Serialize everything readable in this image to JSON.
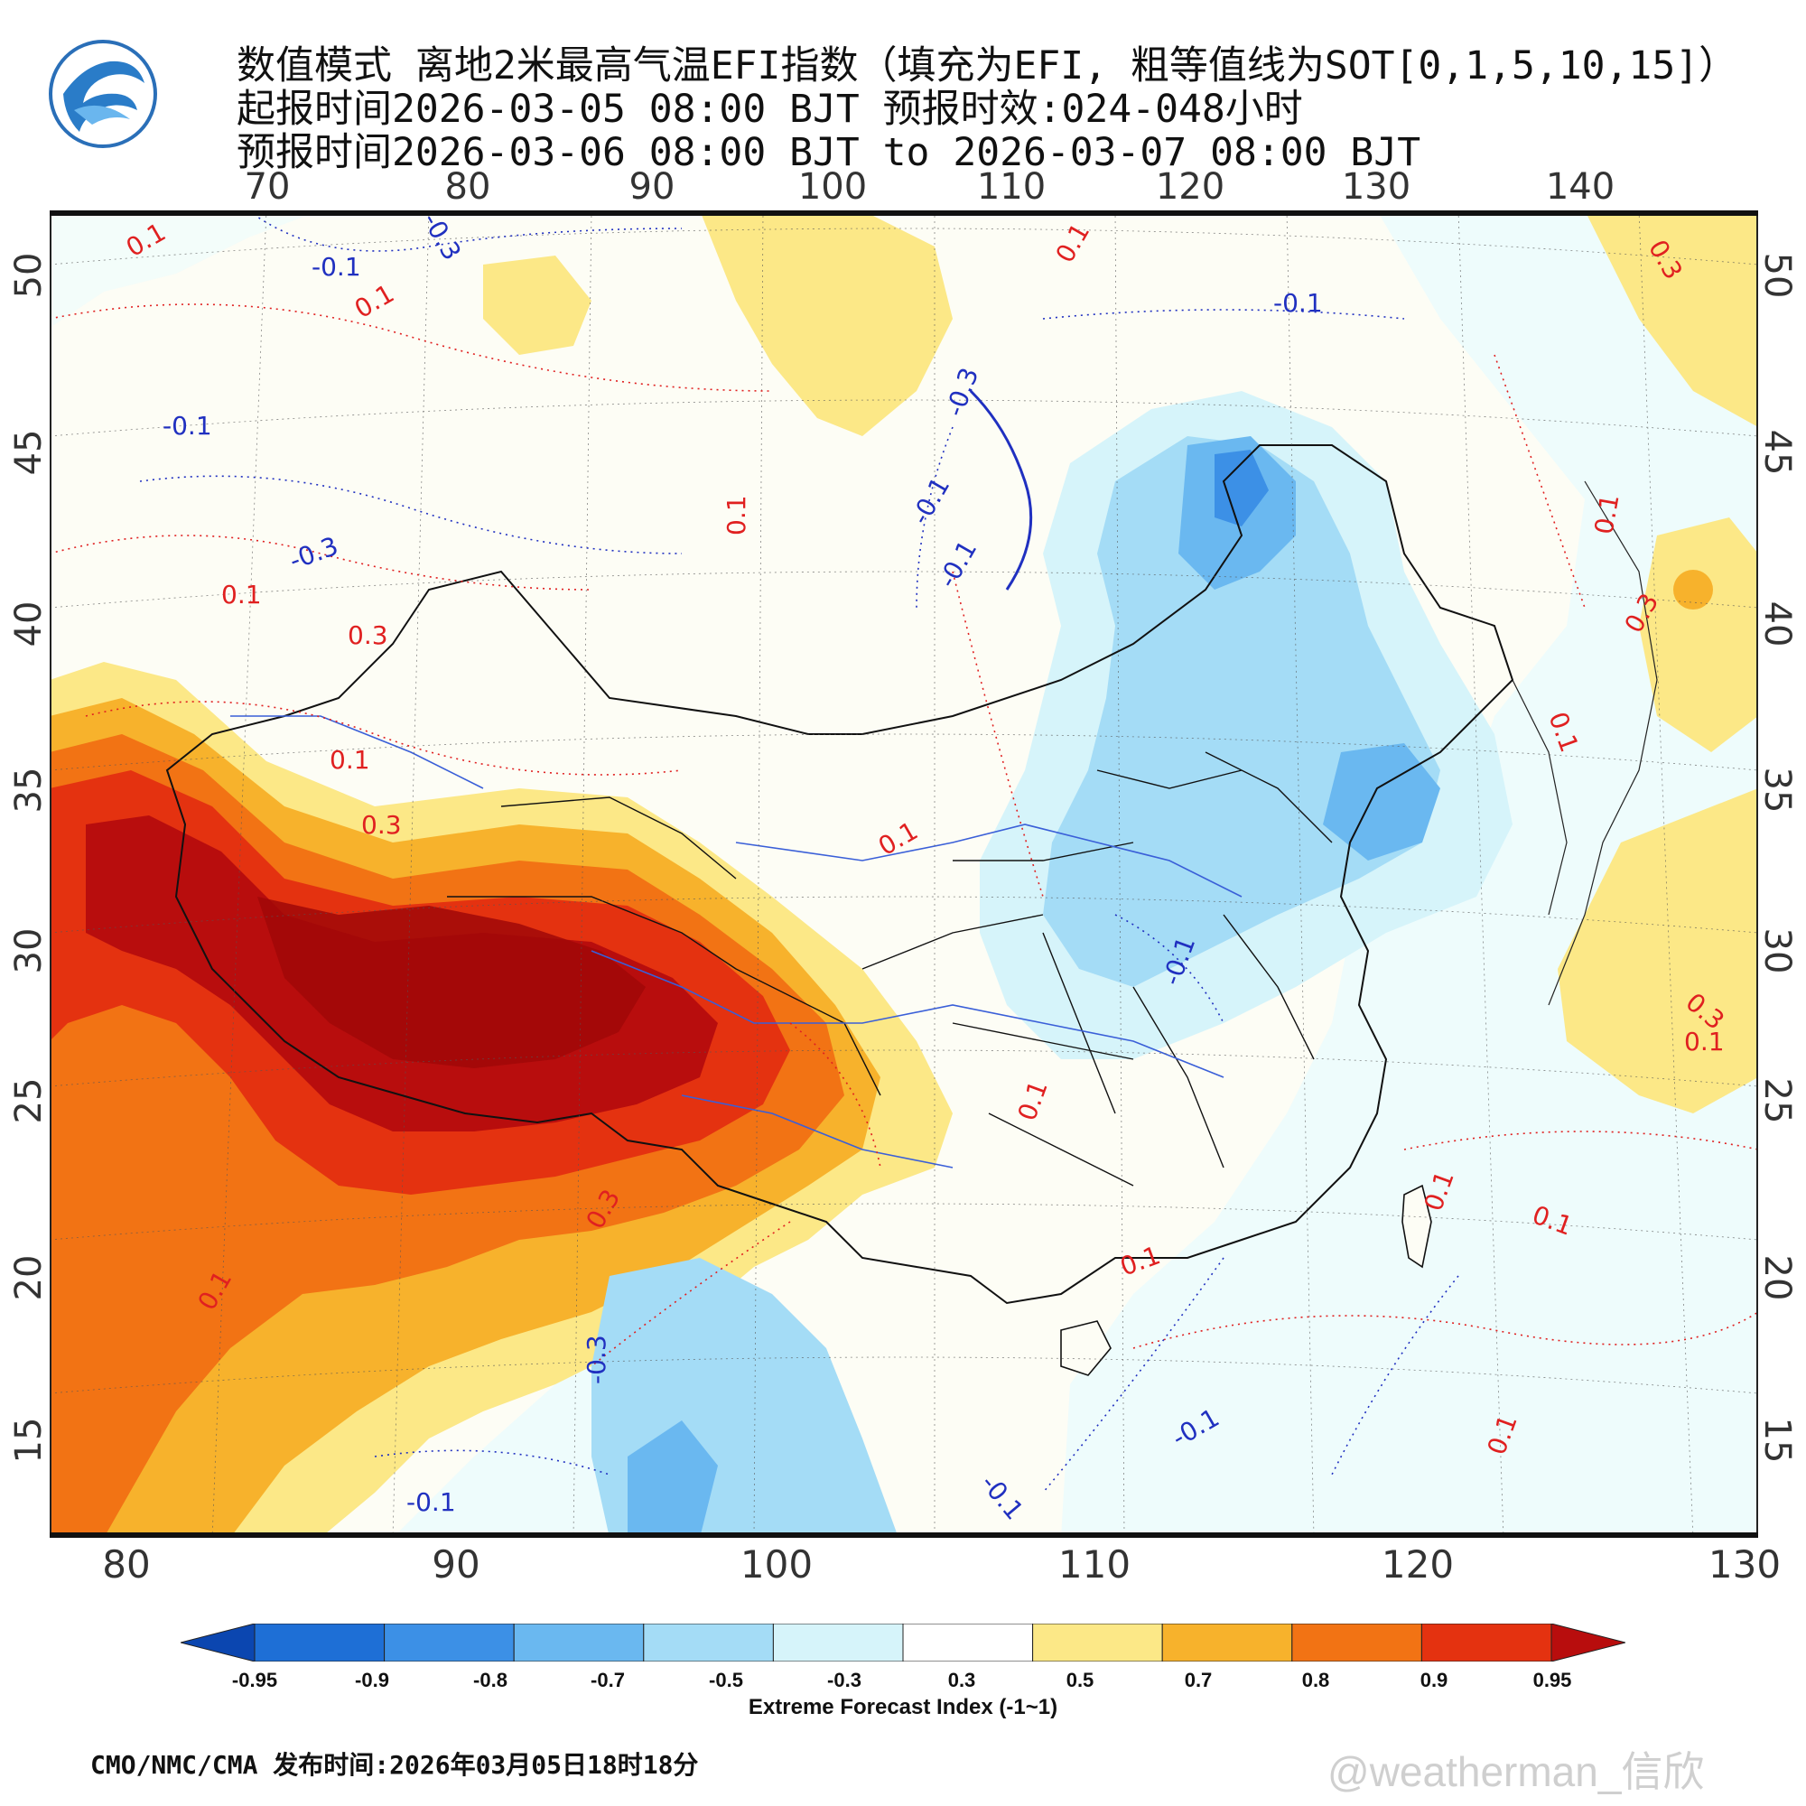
{
  "header": {
    "title_line1": "数值模式 离地2米最高气温EFI指数（填充为EFI, 粗等值线为SOT[0,1,5,10,15]）",
    "title_line2": "起报时间2026-03-05 08:00 BJT 预报时效:024-048小时",
    "title_line3": "预报时间2026-03-06 08:00 BJT to 2026-03-07 08:00 BJT"
  },
  "map": {
    "top_lon_ticks": [
      "70",
      "80",
      "90",
      "100",
      "110",
      "120",
      "130",
      "140"
    ],
    "bottom_lon_ticks": [
      "80",
      "90",
      "100",
      "110",
      "120",
      "130"
    ],
    "lat_ticks": [
      "50",
      "45",
      "40",
      "35",
      "30",
      "25",
      "20",
      "15"
    ],
    "contour_labels_red": [
      "0.1",
      "0.1",
      "0.1",
      "0.3",
      "0.1",
      "0.1",
      "0.3",
      "0.1",
      "0.1",
      "0.3",
      "0.1",
      "0.3",
      "0.1",
      "0.1",
      "0.3",
      "0.1",
      "0.3",
      "0.1",
      "0.1",
      "0.1",
      "0.1",
      "0.1"
    ],
    "contour_labels_blue": [
      "-0.3",
      "-0.1",
      "-0.1",
      "-0.3",
      "-0.1",
      "-0.1",
      "-0.1",
      "-0.3",
      "-0.1",
      "-0.3",
      "-0.1",
      "-0.1",
      "-0.1"
    ],
    "colors": {
      "ocean": "#eefcfc",
      "land": "#fdfdf5",
      "boundary": "#111111",
      "river": "#3a5fd8",
      "contour_pos": "#e02020",
      "contour_neg": "#2030c0"
    }
  },
  "colorbar": {
    "labels": [
      "-0.95",
      "-0.9",
      "-0.8",
      "-0.7",
      "-0.5",
      "-0.3",
      "0.3",
      "0.5",
      "0.7",
      "0.8",
      "0.9",
      "0.95"
    ],
    "colors": [
      "#0b46b0",
      "#1e6fd6",
      "#3c90e6",
      "#6ab8f0",
      "#a4dcf6",
      "#d6f4fa",
      "#ffffff",
      "#fce887",
      "#f7b22c",
      "#f27314",
      "#e43210",
      "#b80d0d"
    ],
    "title": "Extreme Forecast Index (-1~1)"
  },
  "footer": {
    "source": "CMO/NMC/CMA 发布时间:2026年03月05日18时18分",
    "watermark": "@weatherman_信欣"
  }
}
